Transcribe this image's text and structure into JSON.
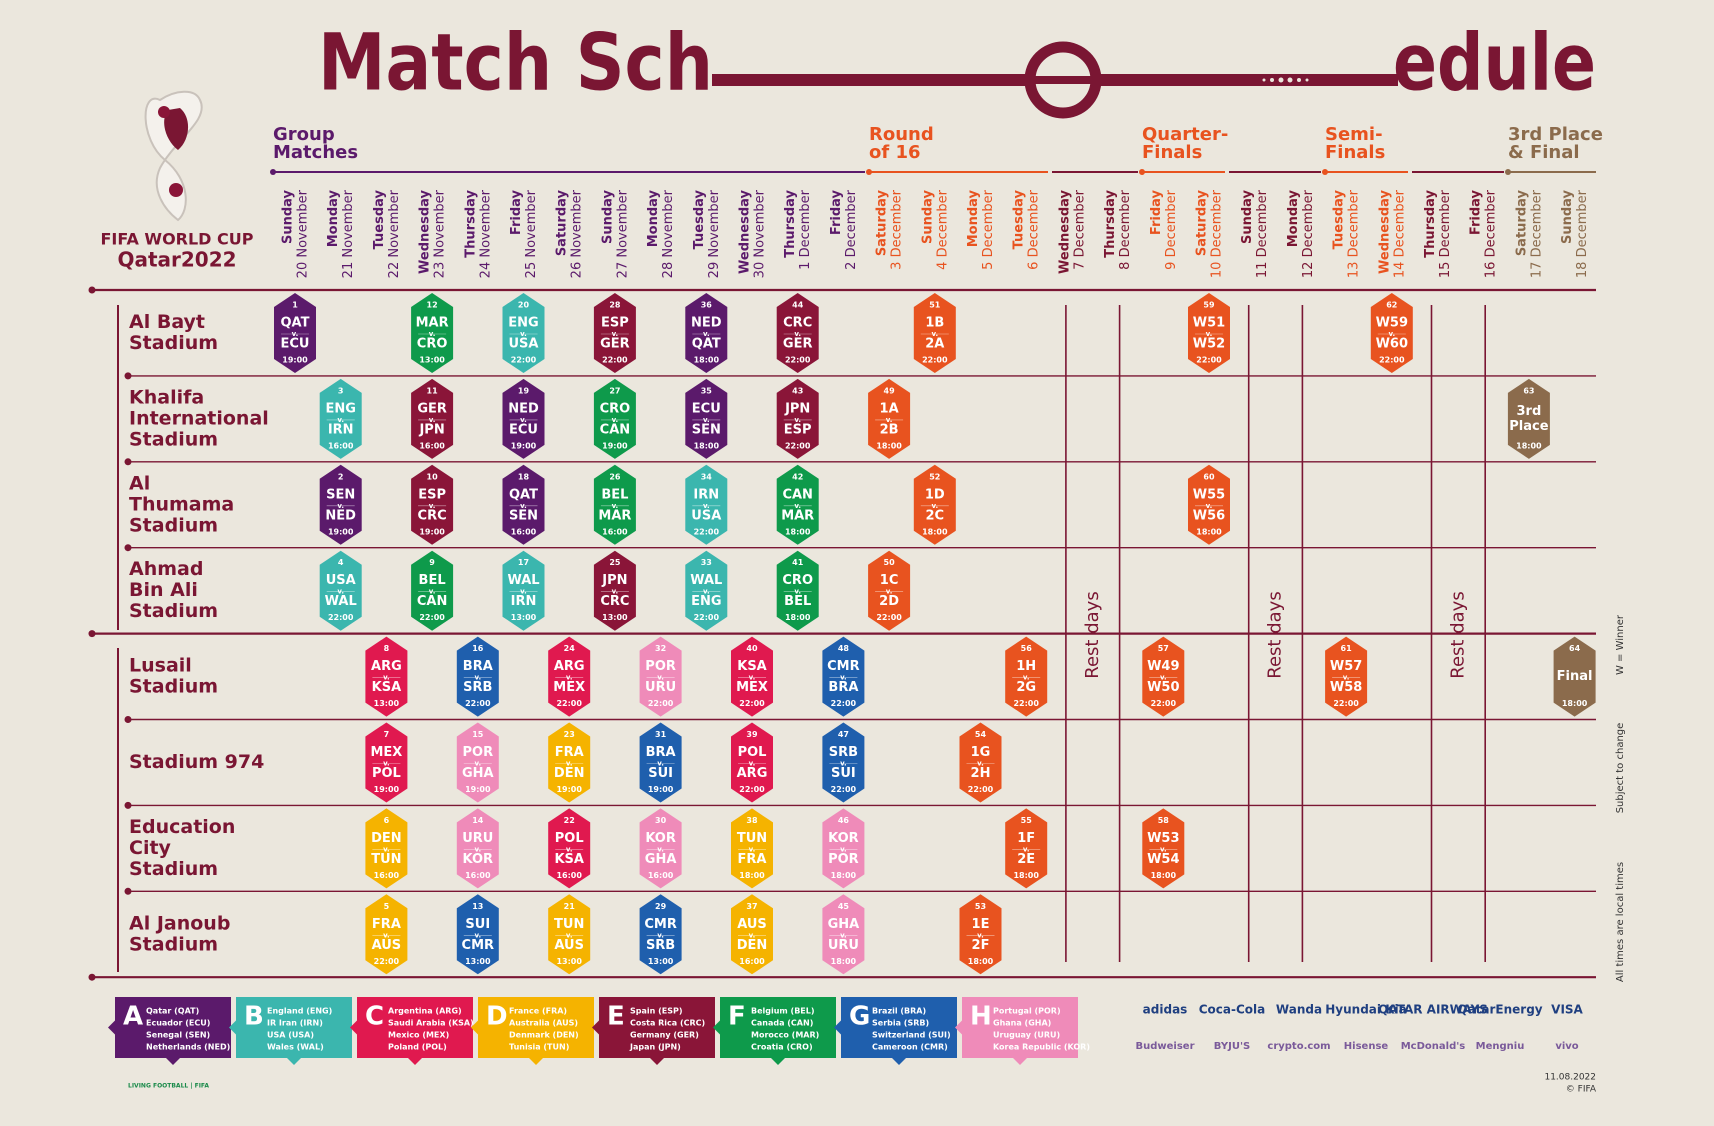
{
  "title": [
    "Match Sch",
    "edule"
  ],
  "logo": [
    "FIFA WORLD CUP",
    "Qatar2022"
  ],
  "vs": "v.",
  "colors": {
    "A": "#5b1a6b",
    "B": "#3bb6ae",
    "C": "#e0194f",
    "D": "#f5b300",
    "E": "#8a1538",
    "F": "#0e9a4b",
    "G": "#1f5fad",
    "H": "#ef8bb9",
    "KO": "#e8531f",
    "FIN": "#8b6b4c"
  },
  "stages": [
    {
      "name": [
        "Group",
        "Matches"
      ],
      "color": "#5b1a6b"
    },
    {
      "name": [
        "Round",
        "of 16"
      ],
      "color": "#e8531f"
    },
    {
      "name": [
        "Quarter-",
        "Finals"
      ],
      "color": "#e8531f"
    },
    {
      "name": [
        "Semi-",
        "Finals"
      ],
      "color": "#e8531f"
    },
    {
      "name": [
        "3rd Place",
        "& Final"
      ],
      "color": "#8b6b4c"
    }
  ],
  "days": [
    {
      "weekday": "Sunday",
      "date": "20 November",
      "color": "#5b1a6b"
    },
    {
      "weekday": "Monday",
      "date": "21 November",
      "color": "#5b1a6b"
    },
    {
      "weekday": "Tuesday",
      "date": "22 November",
      "color": "#5b1a6b"
    },
    {
      "weekday": "Wednesday",
      "date": "23 November",
      "color": "#5b1a6b"
    },
    {
      "weekday": "Thursday",
      "date": "24 November",
      "color": "#5b1a6b"
    },
    {
      "weekday": "Friday",
      "date": "25 November",
      "color": "#5b1a6b"
    },
    {
      "weekday": "Saturday",
      "date": "26 November",
      "color": "#5b1a6b"
    },
    {
      "weekday": "Sunday",
      "date": "27 November",
      "color": "#5b1a6b"
    },
    {
      "weekday": "Monday",
      "date": "28 November",
      "color": "#5b1a6b"
    },
    {
      "weekday": "Tuesday",
      "date": "29 November",
      "color": "#5b1a6b"
    },
    {
      "weekday": "Wednesday",
      "date": "30 November",
      "color": "#5b1a6b"
    },
    {
      "weekday": "Thursday",
      "date": "1 December",
      "color": "#5b1a6b"
    },
    {
      "weekday": "Friday",
      "date": "2 December",
      "color": "#5b1a6b"
    },
    {
      "weekday": "Saturday",
      "date": "3 December",
      "color": "#e8531f"
    },
    {
      "weekday": "Sunday",
      "date": "4 December",
      "color": "#e8531f"
    },
    {
      "weekday": "Monday",
      "date": "5 December",
      "color": "#e8531f"
    },
    {
      "weekday": "Tuesday",
      "date": "6 December",
      "color": "#e8531f"
    },
    {
      "weekday": "Wednesday",
      "date": "7 December",
      "color": "#7a1633"
    },
    {
      "weekday": "Thursday",
      "date": "8 December",
      "color": "#7a1633"
    },
    {
      "weekday": "Friday",
      "date": "9 December",
      "color": "#e8531f"
    },
    {
      "weekday": "Saturday",
      "date": "10 December",
      "color": "#e8531f"
    },
    {
      "weekday": "Sunday",
      "date": "11 December",
      "color": "#7a1633"
    },
    {
      "weekday": "Monday",
      "date": "12 December",
      "color": "#7a1633"
    },
    {
      "weekday": "Tuesday",
      "date": "13 December",
      "color": "#e8531f"
    },
    {
      "weekday": "Wednesday",
      "date": "14 December",
      "color": "#e8531f"
    },
    {
      "weekday": "Thursday",
      "date": "15 December",
      "color": "#7a1633"
    },
    {
      "weekday": "Friday",
      "date": "16 December",
      "color": "#7a1633"
    },
    {
      "weekday": "Saturday",
      "date": "17 December",
      "color": "#8b6b4c"
    },
    {
      "weekday": "Sunday",
      "date": "18 December",
      "color": "#8b6b4c"
    }
  ],
  "rest_days": [
    "Rest days",
    "Rest days",
    "Rest days"
  ],
  "stadiums": [
    {
      "name": [
        "Al Bayt",
        "Stadium"
      ],
      "matches": [
        {
          "no": "1",
          "teams": [
            "QAT",
            "ECU"
          ],
          "time": "19:00",
          "day": 0,
          "tone": "A"
        },
        {
          "no": "12",
          "teams": [
            "MAR",
            "CRO"
          ],
          "time": "13:00",
          "day": 3,
          "tone": "F"
        },
        {
          "no": "20",
          "teams": [
            "ENG",
            "USA"
          ],
          "time": "22:00",
          "day": 5,
          "tone": "B"
        },
        {
          "no": "28",
          "teams": [
            "ESP",
            "GER"
          ],
          "time": "22:00",
          "day": 7,
          "tone": "E"
        },
        {
          "no": "36",
          "teams": [
            "NED",
            "QAT"
          ],
          "time": "18:00",
          "day": 9,
          "tone": "A"
        },
        {
          "no": "44",
          "teams": [
            "CRC",
            "GER"
          ],
          "time": "22:00",
          "day": 11,
          "tone": "E"
        },
        {
          "no": "51",
          "teams": [
            "1B",
            "2A"
          ],
          "time": "22:00",
          "day": 14,
          "tone": "KO"
        },
        {
          "no": "59",
          "teams": [
            "W51",
            "W52"
          ],
          "time": "22:00",
          "day": 20,
          "tone": "KO"
        },
        {
          "no": "62",
          "teams": [
            "W59",
            "W60"
          ],
          "time": "22:00",
          "day": 24,
          "tone": "KO"
        }
      ]
    },
    {
      "name": [
        "Khalifa",
        "International",
        "Stadium"
      ],
      "matches": [
        {
          "no": "3",
          "teams": [
            "ENG",
            "IRN"
          ],
          "time": "16:00",
          "day": 1,
          "tone": "B"
        },
        {
          "no": "11",
          "teams": [
            "GER",
            "JPN"
          ],
          "time": "16:00",
          "day": 3,
          "tone": "E"
        },
        {
          "no": "19",
          "teams": [
            "NED",
            "ECU"
          ],
          "time": "19:00",
          "day": 5,
          "tone": "A"
        },
        {
          "no": "27",
          "teams": [
            "CRO",
            "CAN"
          ],
          "time": "19:00",
          "day": 7,
          "tone": "F"
        },
        {
          "no": "35",
          "teams": [
            "ECU",
            "SEN"
          ],
          "time": "18:00",
          "day": 9,
          "tone": "A"
        },
        {
          "no": "43",
          "teams": [
            "JPN",
            "ESP"
          ],
          "time": "22:00",
          "day": 11,
          "tone": "E"
        },
        {
          "no": "49",
          "teams": [
            "1A",
            "2B"
          ],
          "time": "18:00",
          "day": 13,
          "tone": "KO"
        },
        {
          "no": "63",
          "label": [
            "3rd",
            "Place"
          ],
          "time": "18:00",
          "day": 27,
          "tone": "FIN"
        }
      ]
    },
    {
      "name": [
        "Al",
        "Thumama",
        "Stadium"
      ],
      "matches": [
        {
          "no": "2",
          "teams": [
            "SEN",
            "NED"
          ],
          "time": "19:00",
          "day": 1,
          "tone": "A"
        },
        {
          "no": "10",
          "teams": [
            "ESP",
            "CRC"
          ],
          "time": "19:00",
          "day": 3,
          "tone": "E"
        },
        {
          "no": "18",
          "teams": [
            "QAT",
            "SEN"
          ],
          "time": "16:00",
          "day": 5,
          "tone": "A"
        },
        {
          "no": "26",
          "teams": [
            "BEL",
            "MAR"
          ],
          "time": "16:00",
          "day": 7,
          "tone": "F"
        },
        {
          "no": "34",
          "teams": [
            "IRN",
            "USA"
          ],
          "time": "22:00",
          "day": 9,
          "tone": "B"
        },
        {
          "no": "42",
          "teams": [
            "CAN",
            "MAR"
          ],
          "time": "18:00",
          "day": 11,
          "tone": "F"
        },
        {
          "no": "52",
          "teams": [
            "1D",
            "2C"
          ],
          "time": "18:00",
          "day": 14,
          "tone": "KO"
        },
        {
          "no": "60",
          "teams": [
            "W55",
            "W56"
          ],
          "time": "18:00",
          "day": 20,
          "tone": "KO"
        }
      ]
    },
    {
      "name": [
        "Ahmad",
        "Bin Ali",
        "Stadium"
      ],
      "matches": [
        {
          "no": "4",
          "teams": [
            "USA",
            "WAL"
          ],
          "time": "22:00",
          "day": 1,
          "tone": "B"
        },
        {
          "no": "9",
          "teams": [
            "BEL",
            "CAN"
          ],
          "time": "22:00",
          "day": 3,
          "tone": "F"
        },
        {
          "no": "17",
          "teams": [
            "WAL",
            "IRN"
          ],
          "time": "13:00",
          "day": 5,
          "tone": "B"
        },
        {
          "no": "25",
          "teams": [
            "JPN",
            "CRC"
          ],
          "time": "13:00",
          "day": 7,
          "tone": "E"
        },
        {
          "no": "33",
          "teams": [
            "WAL",
            "ENG"
          ],
          "time": "22:00",
          "day": 9,
          "tone": "B"
        },
        {
          "no": "41",
          "teams": [
            "CRO",
            "BEL"
          ],
          "time": "18:00",
          "day": 11,
          "tone": "F"
        },
        {
          "no": "50",
          "teams": [
            "1C",
            "2D"
          ],
          "time": "22:00",
          "day": 13,
          "tone": "KO"
        }
      ]
    },
    {
      "name": [
        "Lusail",
        "Stadium"
      ],
      "matches": [
        {
          "no": "8",
          "teams": [
            "ARG",
            "KSA"
          ],
          "time": "13:00",
          "day": 2,
          "tone": "C"
        },
        {
          "no": "16",
          "teams": [
            "BRA",
            "SRB"
          ],
          "time": "22:00",
          "day": 4,
          "tone": "G"
        },
        {
          "no": "24",
          "teams": [
            "ARG",
            "MEX"
          ],
          "time": "22:00",
          "day": 6,
          "tone": "C"
        },
        {
          "no": "32",
          "teams": [
            "POR",
            "URU"
          ],
          "time": "22:00",
          "day": 8,
          "tone": "H"
        },
        {
          "no": "40",
          "teams": [
            "KSA",
            "MEX"
          ],
          "time": "22:00",
          "day": 10,
          "tone": "C"
        },
        {
          "no": "48",
          "teams": [
            "CMR",
            "BRA"
          ],
          "time": "22:00",
          "day": 12,
          "tone": "G"
        },
        {
          "no": "56",
          "teams": [
            "1H",
            "2G"
          ],
          "time": "22:00",
          "day": 16,
          "tone": "KO"
        },
        {
          "no": "57",
          "teams": [
            "W49",
            "W50"
          ],
          "time": "22:00",
          "day": 19,
          "tone": "KO"
        },
        {
          "no": "61",
          "teams": [
            "W57",
            "W58"
          ],
          "time": "22:00",
          "day": 23,
          "tone": "KO"
        },
        {
          "no": "64",
          "label": [
            "Final"
          ],
          "time": "18:00",
          "day": 28,
          "tone": "FIN"
        }
      ]
    },
    {
      "name": [
        "Stadium 974"
      ],
      "matches": [
        {
          "no": "7",
          "teams": [
            "MEX",
            "POL"
          ],
          "time": "19:00",
          "day": 2,
          "tone": "C"
        },
        {
          "no": "15",
          "teams": [
            "POR",
            "GHA"
          ],
          "time": "19:00",
          "day": 4,
          "tone": "H"
        },
        {
          "no": "23",
          "teams": [
            "FRA",
            "DEN"
          ],
          "time": "19:00",
          "day": 6,
          "tone": "D"
        },
        {
          "no": "31",
          "teams": [
            "BRA",
            "SUI"
          ],
          "time": "19:00",
          "day": 8,
          "tone": "G"
        },
        {
          "no": "39",
          "teams": [
            "POL",
            "ARG"
          ],
          "time": "22:00",
          "day": 10,
          "tone": "C"
        },
        {
          "no": "47",
          "teams": [
            "SRB",
            "SUI"
          ],
          "time": "22:00",
          "day": 12,
          "tone": "G"
        },
        {
          "no": "54",
          "teams": [
            "1G",
            "2H"
          ],
          "time": "22:00",
          "day": 15,
          "tone": "KO"
        }
      ]
    },
    {
      "name": [
        "Education",
        "City",
        "Stadium"
      ],
      "matches": [
        {
          "no": "6",
          "teams": [
            "DEN",
            "TUN"
          ],
          "time": "16:00",
          "day": 2,
          "tone": "D"
        },
        {
          "no": "14",
          "teams": [
            "URU",
            "KOR"
          ],
          "time": "16:00",
          "day": 4,
          "tone": "H"
        },
        {
          "no": "22",
          "teams": [
            "POL",
            "KSA"
          ],
          "time": "16:00",
          "day": 6,
          "tone": "C"
        },
        {
          "no": "30",
          "teams": [
            "KOR",
            "GHA"
          ],
          "time": "16:00",
          "day": 8,
          "tone": "H"
        },
        {
          "no": "38",
          "teams": [
            "TUN",
            "FRA"
          ],
          "time": "18:00",
          "day": 10,
          "tone": "D"
        },
        {
          "no": "46",
          "teams": [
            "KOR",
            "POR"
          ],
          "time": "18:00",
          "day": 12,
          "tone": "H"
        },
        {
          "no": "55",
          "teams": [
            "1F",
            "2E"
          ],
          "time": "18:00",
          "day": 16,
          "tone": "KO"
        },
        {
          "no": "58",
          "teams": [
            "W53",
            "W54"
          ],
          "time": "18:00",
          "day": 19,
          "tone": "KO"
        }
      ]
    },
    {
      "name": [
        "Al Janoub",
        "Stadium"
      ],
      "matches": [
        {
          "no": "5",
          "teams": [
            "FRA",
            "AUS"
          ],
          "time": "22:00",
          "day": 2,
          "tone": "D"
        },
        {
          "no": "13",
          "teams": [
            "SUI",
            "CMR"
          ],
          "time": "13:00",
          "day": 4,
          "tone": "G"
        },
        {
          "no": "21",
          "teams": [
            "TUN",
            "AUS"
          ],
          "time": "13:00",
          "day": 6,
          "tone": "D"
        },
        {
          "no": "29",
          "teams": [
            "CMR",
            "SRB"
          ],
          "time": "13:00",
          "day": 8,
          "tone": "G"
        },
        {
          "no": "37",
          "teams": [
            "AUS",
            "DEN"
          ],
          "time": "16:00",
          "day": 10,
          "tone": "D"
        },
        {
          "no": "45",
          "teams": [
            "GHA",
            "URU"
          ],
          "time": "18:00",
          "day": 12,
          "tone": "H"
        },
        {
          "no": "53",
          "teams": [
            "1E",
            "2F"
          ],
          "time": "18:00",
          "day": 15,
          "tone": "KO"
        }
      ]
    }
  ],
  "groups": [
    {
      "letter": "A",
      "teams": [
        "Qatar (QAT)",
        "Ecuador (ECU)",
        "Senegal (SEN)",
        "Netherlands (NED)"
      ]
    },
    {
      "letter": "B",
      "teams": [
        "England (ENG)",
        "IR Iran (IRN)",
        "USA (USA)",
        "Wales (WAL)"
      ]
    },
    {
      "letter": "C",
      "teams": [
        "Argentina (ARG)",
        "Saudi Arabia (KSA)",
        "Mexico (MEX)",
        "Poland (POL)"
      ]
    },
    {
      "letter": "D",
      "teams": [
        "France (FRA)",
        "Australia (AUS)",
        "Denmark (DEN)",
        "Tunisia (TUN)"
      ]
    },
    {
      "letter": "E",
      "teams": [
        "Spain (ESP)",
        "Costa Rica (CRC)",
        "Germany (GER)",
        "Japan (JPN)"
      ]
    },
    {
      "letter": "F",
      "teams": [
        "Belgium (BEL)",
        "Canada (CAN)",
        "Morocco (MAR)",
        "Croatia (CRO)"
      ]
    },
    {
      "letter": "G",
      "teams": [
        "Brazil (BRA)",
        "Serbia (SRB)",
        "Switzerland (SUI)",
        "Cameroon (CMR)"
      ]
    },
    {
      "letter": "H",
      "teams": [
        "Portugal (POR)",
        "Ghana (GHA)",
        "Uruguay (URU)",
        "Korea Republic (KOR)"
      ]
    }
  ],
  "side_notes": [
    "W = Winner",
    "Subject to change",
    "All times are local times"
  ],
  "sponsors": [
    [
      "adidas",
      "Coca-Cola",
      "Wanda",
      "Hyundai Kia",
      "QATAR AIRWAYS",
      "QatarEnergy",
      "VISA"
    ],
    [
      "Budweiser",
      "BYJU'S",
      "crypto.com",
      "Hisense",
      "McDonald's",
      "Mengniu",
      "vivo"
    ]
  ],
  "footer": {
    "left": "LIVING FOOTBALL | FIFA",
    "date": "11.08.2022",
    "copyright": "© FIFA"
  }
}
